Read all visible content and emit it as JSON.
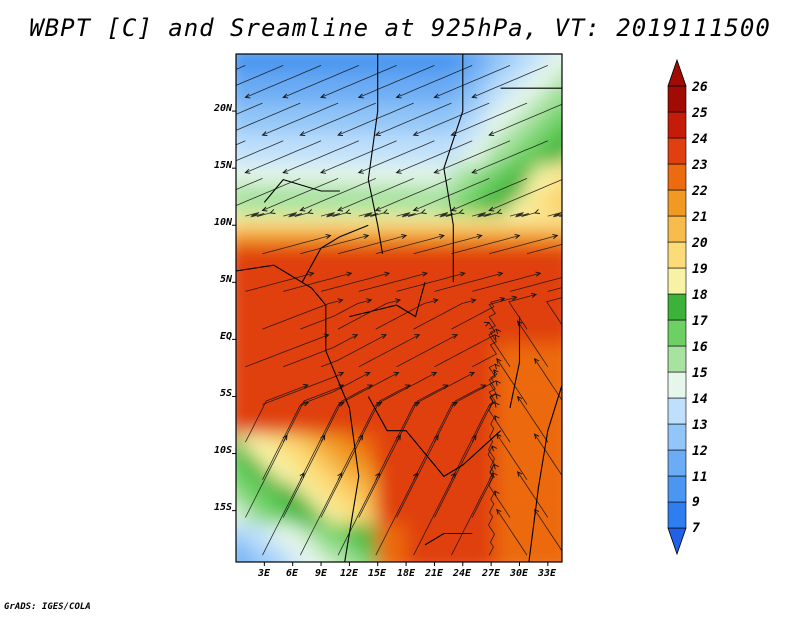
{
  "title": "WBPT [C] and Sreamline at 925hPa, VT: 2019111500",
  "credit": "GrADS: IGES/COLA",
  "map": {
    "lat_ticks": [
      "20N",
      "15N",
      "10N",
      "5N",
      "EQ",
      "5S",
      "10S",
      "15S"
    ],
    "lon_ticks": [
      "3E",
      "6E",
      "9E",
      "12E",
      "15E",
      "18E",
      "21E",
      "24E",
      "27E",
      "30E",
      "33E"
    ],
    "lon_range": [
      0,
      34.5
    ],
    "lat_range": [
      -19.5,
      25
    ]
  },
  "colorbar": {
    "labels": [
      "7",
      "9",
      "11",
      "12",
      "13",
      "14",
      "15",
      "16",
      "17",
      "18",
      "19",
      "20",
      "21",
      "22",
      "23",
      "24",
      "25",
      "26"
    ],
    "colors": [
      "#1f62e8",
      "#2f7ef0",
      "#4a96f0",
      "#6cacf4",
      "#92c6f8",
      "#bfe0fb",
      "#e6f6ea",
      "#a8e2a0",
      "#6cd062",
      "#3cb23a",
      "#f8f2a6",
      "#fcdc78",
      "#f8bc4c",
      "#f09a24",
      "#ec6a10",
      "#e04010",
      "#c41c08",
      "#a00c04"
    ]
  },
  "field": {
    "description": "wet-bulb potential temperature field"
  }
}
